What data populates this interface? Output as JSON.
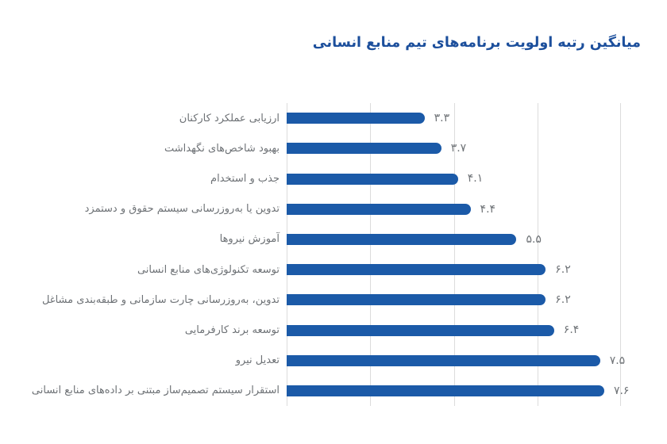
{
  "title": {
    "text": "میانگین رتبه اولویت برنامه‌های تیم منابع انسانی"
  },
  "chart_data": {
    "type": "bar",
    "orientation": "horizontal",
    "direction": "rtl",
    "title": "میانگین رتبه اولویت برنامه‌های تیم منابع انسانی",
    "categories": [
      "ارزیابی عملکرد کارکنان",
      "بهبود شاخص‌های نگهداشت",
      "جذب و استخدام",
      "تدوین یا به‌روزرسانی سیستم حقوق و دستمزد",
      "آموزش نیروها",
      "توسعه تکنولوژی‌های منابع انسانی",
      "تدوین، به‌روزرسانی چارت سازمانی و طبقه‌بندی مشاغل",
      "توسعه برند کارفرمایی",
      "تعدیل نیرو",
      "استقرار سیستم تصمیم‌ساز مبتنی بر داده‌های منابع انسانی"
    ],
    "values": [
      3.3,
      3.7,
      4.1,
      4.4,
      5.5,
      6.2,
      6.2,
      6.4,
      7.5,
      7.6
    ],
    "value_labels": [
      "۳.۳",
      "۳.۷",
      "۴.۱",
      "۴.۴",
      "۵.۵",
      "۶.۲",
      "۶.۲",
      "۶.۴",
      "۷.۵",
      "۷.۶"
    ],
    "xlabel": "",
    "ylabel": "",
    "xlim": [
      0,
      8
    ],
    "x_gridlines": [
      0,
      2,
      4,
      6,
      8
    ],
    "grid": true,
    "legend": false,
    "colors": {
      "bar": "#1b5aa8",
      "value_label": "#6f7377",
      "category_label": "#6e7276",
      "gridline": "#dcdcdc",
      "title": "#1c4f9c",
      "background": "#ffffff"
    }
  }
}
